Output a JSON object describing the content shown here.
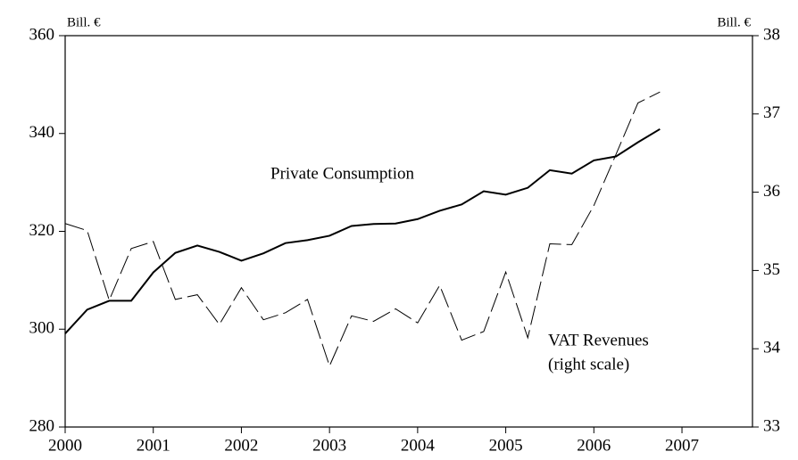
{
  "chart_data": {
    "type": "line",
    "y_label": "Bill. €",
    "y2_label": "Bill. €",
    "annotations": [
      "Private Consumption",
      "VAT Revenues",
      "(right scale)"
    ],
    "x": [
      2000,
      2000.25,
      2000.5,
      2000.75,
      2001,
      2001.25,
      2001.5,
      2001.75,
      2002,
      2002.25,
      2002.5,
      2002.75,
      2003,
      2003.25,
      2003.5,
      2003.75,
      2004,
      2004.25,
      2004.5,
      2004.75,
      2005,
      2005.25,
      2005.5,
      2005.75,
      2006,
      2006.25,
      2006.5,
      2006.75
    ],
    "series": [
      {
        "name": "Private Consumption",
        "color": "#000000",
        "axis": "y",
        "dashed": false,
        "values": [
          299.1,
          304.0,
          305.8,
          305.8,
          311.6,
          315.6,
          317.1,
          315.8,
          314.0,
          315.5,
          317.6,
          318.2,
          319.1,
          321.1,
          321.5,
          321.6,
          322.5,
          324.2,
          325.5,
          328.2,
          327.5,
          328.9,
          332.5,
          331.8,
          334.5,
          335.3,
          338.2,
          340.9
        ]
      },
      {
        "name": "VAT Revenues",
        "color": "#000000",
        "axis": "y2",
        "dashed": true,
        "values": [
          35.6,
          35.51,
          34.62,
          35.28,
          35.37,
          34.63,
          34.69,
          34.31,
          34.78,
          34.37,
          34.46,
          34.63,
          33.78,
          34.42,
          34.35,
          34.51,
          34.33,
          34.81,
          34.11,
          34.22,
          34.98,
          34.14,
          35.34,
          35.33,
          35.83,
          36.48,
          37.14,
          37.28
        ]
      }
    ],
    "xlim": [
      2000,
      2007.8
    ],
    "xticks": [
      2000,
      2001,
      2002,
      2003,
      2004,
      2005,
      2006,
      2007
    ],
    "ylim": [
      280,
      360
    ],
    "yticks": [
      280,
      300,
      320,
      340,
      360
    ],
    "y2lim": [
      33,
      38
    ],
    "y2ticks": [
      33,
      34,
      35,
      36,
      37,
      38
    ]
  }
}
